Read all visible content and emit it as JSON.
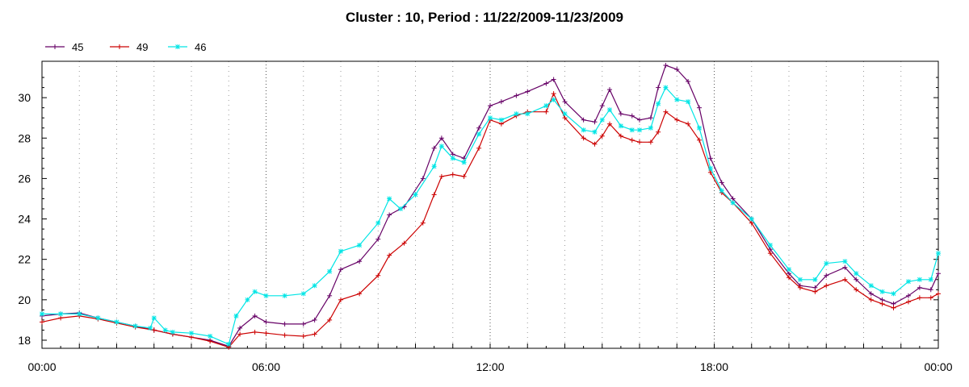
{
  "chart_data": {
    "type": "line",
    "title": "Cluster : 10, Period : 11/22/2009-11/23/2009",
    "xlabel": "",
    "ylabel": "",
    "xlim": [
      0,
      24
    ],
    "ylim": [
      17.6,
      31.8
    ],
    "x_ticks": [
      {
        "value": 0,
        "label": "00:00"
      },
      {
        "value": 6,
        "label": "06:00"
      },
      {
        "value": 12,
        "label": "12:00"
      },
      {
        "value": 18,
        "label": "18:00"
      },
      {
        "value": 24,
        "label": "00:00"
      }
    ],
    "y_ticks": [
      18,
      20,
      22,
      24,
      26,
      28,
      30
    ],
    "grid": "vertical dotted",
    "legend_position": "top-left",
    "series": [
      {
        "name": "45",
        "color": "#660066",
        "marker": "plus",
        "points": [
          [
            0,
            19.2
          ],
          [
            0.5,
            19.3
          ],
          [
            1,
            19.35
          ],
          [
            1.5,
            19.1
          ],
          [
            2,
            18.9
          ],
          [
            2.5,
            18.7
          ],
          [
            3,
            18.5
          ],
          [
            3.5,
            18.3
          ],
          [
            4,
            18.15
          ],
          [
            4.5,
            18.0
          ],
          [
            5,
            17.7
          ],
          [
            5.3,
            18.6
          ],
          [
            5.7,
            19.2
          ],
          [
            6,
            18.9
          ],
          [
            6.5,
            18.8
          ],
          [
            7,
            18.8
          ],
          [
            7.3,
            19.0
          ],
          [
            7.7,
            20.2
          ],
          [
            8,
            21.5
          ],
          [
            8.5,
            21.9
          ],
          [
            9,
            23.0
          ],
          [
            9.3,
            24.2
          ],
          [
            9.7,
            24.6
          ],
          [
            10.2,
            26.0
          ],
          [
            10.5,
            27.5
          ],
          [
            10.7,
            28.0
          ],
          [
            11,
            27.2
          ],
          [
            11.3,
            27.0
          ],
          [
            11.7,
            28.5
          ],
          [
            12,
            29.6
          ],
          [
            12.3,
            29.8
          ],
          [
            12.7,
            30.1
          ],
          [
            13,
            30.3
          ],
          [
            13.5,
            30.7
          ],
          [
            13.7,
            30.9
          ],
          [
            14,
            29.8
          ],
          [
            14.5,
            28.9
          ],
          [
            14.8,
            28.8
          ],
          [
            15,
            29.6
          ],
          [
            15.2,
            30.4
          ],
          [
            15.5,
            29.2
          ],
          [
            15.8,
            29.1
          ],
          [
            16,
            28.9
          ],
          [
            16.3,
            29.0
          ],
          [
            16.5,
            30.5
          ],
          [
            16.7,
            31.6
          ],
          [
            17,
            31.4
          ],
          [
            17.3,
            30.8
          ],
          [
            17.6,
            29.5
          ],
          [
            17.9,
            27.0
          ],
          [
            18.2,
            25.8
          ],
          [
            18.5,
            25.0
          ],
          [
            19,
            24.0
          ],
          [
            19.5,
            22.5
          ],
          [
            20,
            21.3
          ],
          [
            20.3,
            20.7
          ],
          [
            20.7,
            20.6
          ],
          [
            21,
            21.2
          ],
          [
            21.5,
            21.6
          ],
          [
            21.8,
            21.0
          ],
          [
            22.2,
            20.3
          ],
          [
            22.5,
            20.0
          ],
          [
            22.8,
            19.8
          ],
          [
            23.2,
            20.2
          ],
          [
            23.5,
            20.6
          ],
          [
            23.8,
            20.5
          ],
          [
            24,
            21.3
          ]
        ]
      },
      {
        "name": "49",
        "color": "#cc0000",
        "marker": "plus",
        "points": [
          [
            0,
            18.9
          ],
          [
            0.5,
            19.1
          ],
          [
            1,
            19.2
          ],
          [
            1.5,
            19.05
          ],
          [
            2,
            18.85
          ],
          [
            2.5,
            18.65
          ],
          [
            3,
            18.5
          ],
          [
            3.5,
            18.3
          ],
          [
            4,
            18.15
          ],
          [
            4.5,
            17.95
          ],
          [
            5,
            17.65
          ],
          [
            5.3,
            18.3
          ],
          [
            5.7,
            18.4
          ],
          [
            6,
            18.35
          ],
          [
            6.5,
            18.25
          ],
          [
            7,
            18.2
          ],
          [
            7.3,
            18.3
          ],
          [
            7.7,
            19.0
          ],
          [
            8,
            20.0
          ],
          [
            8.5,
            20.3
          ],
          [
            9,
            21.2
          ],
          [
            9.3,
            22.2
          ],
          [
            9.7,
            22.8
          ],
          [
            10.2,
            23.8
          ],
          [
            10.5,
            25.2
          ],
          [
            10.7,
            26.1
          ],
          [
            11,
            26.2
          ],
          [
            11.3,
            26.1
          ],
          [
            11.7,
            27.5
          ],
          [
            12,
            28.9
          ],
          [
            12.3,
            28.7
          ],
          [
            12.7,
            29.1
          ],
          [
            13,
            29.3
          ],
          [
            13.5,
            29.3
          ],
          [
            13.7,
            30.2
          ],
          [
            14,
            29.0
          ],
          [
            14.5,
            28.0
          ],
          [
            14.8,
            27.7
          ],
          [
            15,
            28.1
          ],
          [
            15.2,
            28.7
          ],
          [
            15.5,
            28.1
          ],
          [
            15.8,
            27.9
          ],
          [
            16,
            27.8
          ],
          [
            16.3,
            27.8
          ],
          [
            16.5,
            28.3
          ],
          [
            16.7,
            29.3
          ],
          [
            17,
            28.9
          ],
          [
            17.3,
            28.7
          ],
          [
            17.6,
            27.9
          ],
          [
            17.9,
            26.3
          ],
          [
            18.2,
            25.3
          ],
          [
            18.5,
            24.8
          ],
          [
            19,
            23.8
          ],
          [
            19.5,
            22.3
          ],
          [
            20,
            21.1
          ],
          [
            20.3,
            20.6
          ],
          [
            20.7,
            20.4
          ],
          [
            21,
            20.7
          ],
          [
            21.5,
            21.0
          ],
          [
            21.8,
            20.5
          ],
          [
            22.2,
            20.0
          ],
          [
            22.5,
            19.8
          ],
          [
            22.8,
            19.6
          ],
          [
            23.2,
            19.9
          ],
          [
            23.5,
            20.1
          ],
          [
            23.8,
            20.1
          ],
          [
            24,
            20.3
          ]
        ]
      },
      {
        "name": "46",
        "color": "#00e5e5",
        "marker": "asterisk",
        "points": [
          [
            0,
            19.3
          ],
          [
            0.5,
            19.3
          ],
          [
            1,
            19.3
          ],
          [
            1.5,
            19.1
          ],
          [
            2,
            18.9
          ],
          [
            2.5,
            18.7
          ],
          [
            2.9,
            18.6
          ],
          [
            3,
            19.1
          ],
          [
            3.3,
            18.5
          ],
          [
            3.5,
            18.4
          ],
          [
            4,
            18.35
          ],
          [
            4.5,
            18.2
          ],
          [
            5,
            17.8
          ],
          [
            5.2,
            19.2
          ],
          [
            5.5,
            20.0
          ],
          [
            5.7,
            20.4
          ],
          [
            6,
            20.2
          ],
          [
            6.5,
            20.2
          ],
          [
            7,
            20.3
          ],
          [
            7.3,
            20.7
          ],
          [
            7.7,
            21.4
          ],
          [
            8,
            22.4
          ],
          [
            8.5,
            22.7
          ],
          [
            9,
            23.8
          ],
          [
            9.3,
            25.0
          ],
          [
            9.6,
            24.5
          ],
          [
            10,
            25.2
          ],
          [
            10.5,
            26.6
          ],
          [
            10.7,
            27.6
          ],
          [
            11,
            27.0
          ],
          [
            11.3,
            26.8
          ],
          [
            11.7,
            28.2
          ],
          [
            12,
            29.0
          ],
          [
            12.3,
            28.9
          ],
          [
            12.7,
            29.2
          ],
          [
            13,
            29.2
          ],
          [
            13.5,
            29.6
          ],
          [
            13.7,
            29.9
          ],
          [
            14,
            29.2
          ],
          [
            14.5,
            28.4
          ],
          [
            14.8,
            28.3
          ],
          [
            15,
            28.9
          ],
          [
            15.2,
            29.4
          ],
          [
            15.5,
            28.6
          ],
          [
            15.8,
            28.4
          ],
          [
            16,
            28.4
          ],
          [
            16.3,
            28.5
          ],
          [
            16.5,
            29.7
          ],
          [
            16.7,
            30.5
          ],
          [
            17,
            29.9
          ],
          [
            17.3,
            29.8
          ],
          [
            17.6,
            28.5
          ],
          [
            17.9,
            26.5
          ],
          [
            18.2,
            25.4
          ],
          [
            18.5,
            24.8
          ],
          [
            19,
            24.0
          ],
          [
            19.5,
            22.7
          ],
          [
            20,
            21.5
          ],
          [
            20.3,
            21.0
          ],
          [
            20.7,
            21.0
          ],
          [
            21,
            21.8
          ],
          [
            21.5,
            21.9
          ],
          [
            21.8,
            21.3
          ],
          [
            22.2,
            20.7
          ],
          [
            22.5,
            20.4
          ],
          [
            22.8,
            20.3
          ],
          [
            23.2,
            20.9
          ],
          [
            23.5,
            21.0
          ],
          [
            23.8,
            21.0
          ],
          [
            24,
            22.3
          ]
        ]
      }
    ]
  }
}
